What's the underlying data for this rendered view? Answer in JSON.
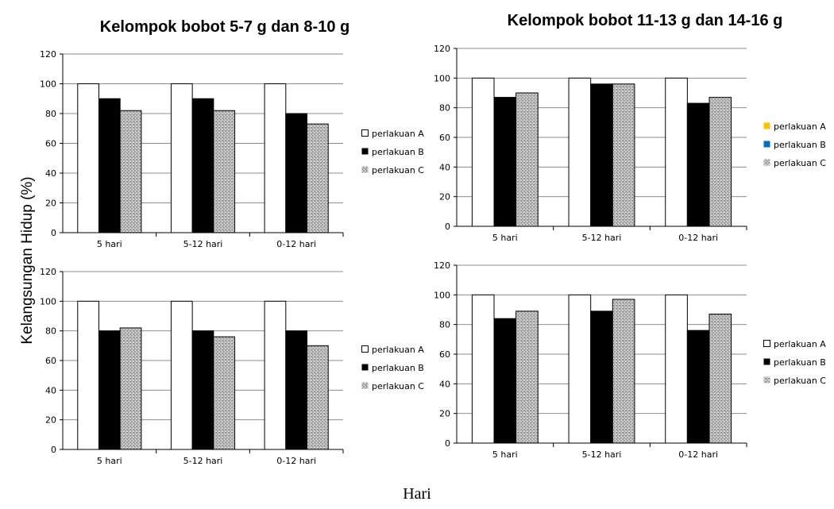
{
  "titles": {
    "left": "Kelompok bobot 5-7 g dan 8-10 g",
    "right": "Kelompok bobot 11-13 g dan 14-16 g"
  },
  "ylabel": "Kelangsungan Hidup (%)",
  "xlabel": "Hari",
  "colors": {
    "white": "#ffffff",
    "black": "#000000",
    "gray": "#b5b5b5",
    "yellow": "#ffc000",
    "blue": "#0070c0",
    "grid": "#8c8c8c"
  },
  "chart_data": [
    {
      "type": "bar",
      "categories": [
        "5 hari",
        "5-12 hari",
        "0-12 hari"
      ],
      "ylim": [
        0,
        120
      ],
      "yticks": [
        0,
        20,
        40,
        60,
        80,
        100,
        120
      ],
      "grid": true,
      "legend_position": "right",
      "series": [
        {
          "name": "perlakuan A",
          "values": [
            100,
            100,
            100
          ],
          "fill": "white",
          "legend_swatch": "white"
        },
        {
          "name": "perlakuan B",
          "values": [
            90,
            90,
            80
          ],
          "fill": "black",
          "legend_swatch": "black"
        },
        {
          "name": "perlakuan C",
          "values": [
            82,
            82,
            73
          ],
          "fill": "gray",
          "legend_swatch": "gray"
        }
      ]
    },
    {
      "type": "bar",
      "categories": [
        "5 hari",
        "5-12 hari",
        "0-12 hari"
      ],
      "ylim": [
        0,
        120
      ],
      "yticks": [
        0,
        20,
        40,
        60,
        80,
        100,
        120
      ],
      "grid": true,
      "legend_position": "right",
      "series": [
        {
          "name": "perlakuan A",
          "values": [
            100,
            100,
            100
          ],
          "fill": "white",
          "legend_swatch": "yellow"
        },
        {
          "name": "perlakuan B",
          "values": [
            87,
            96,
            83
          ],
          "fill": "black",
          "legend_swatch": "blue"
        },
        {
          "name": "perlakuan C",
          "values": [
            90,
            96,
            87
          ],
          "fill": "gray",
          "legend_swatch": "gray"
        }
      ]
    },
    {
      "type": "bar",
      "categories": [
        "5 hari",
        "5-12 hari",
        "0-12 hari"
      ],
      "ylim": [
        0,
        120
      ],
      "yticks": [
        0,
        20,
        40,
        60,
        80,
        100,
        120
      ],
      "grid": true,
      "legend_position": "right",
      "series": [
        {
          "name": "perlakuan A",
          "values": [
            100,
            100,
            100
          ],
          "fill": "white",
          "legend_swatch": "white"
        },
        {
          "name": "perlakuan B",
          "values": [
            80,
            80,
            80
          ],
          "fill": "black",
          "legend_swatch": "black"
        },
        {
          "name": "perlakuan C",
          "values": [
            82,
            76,
            70
          ],
          "fill": "gray",
          "legend_swatch": "gray"
        }
      ]
    },
    {
      "type": "bar",
      "categories": [
        "5 hari",
        "5-12 hari",
        "0-12 hari"
      ],
      "ylim": [
        0,
        120
      ],
      "yticks": [
        0,
        20,
        40,
        60,
        80,
        100,
        120
      ],
      "grid": true,
      "legend_position": "right",
      "series": [
        {
          "name": "perlakuan A",
          "values": [
            100,
            100,
            100
          ],
          "fill": "white",
          "legend_swatch": "white"
        },
        {
          "name": "perlakuan B",
          "values": [
            84,
            89,
            76
          ],
          "fill": "black",
          "legend_swatch": "black"
        },
        {
          "name": "perlakuan C",
          "values": [
            89,
            97,
            87
          ],
          "fill": "gray",
          "legend_swatch": "gray"
        }
      ]
    }
  ]
}
